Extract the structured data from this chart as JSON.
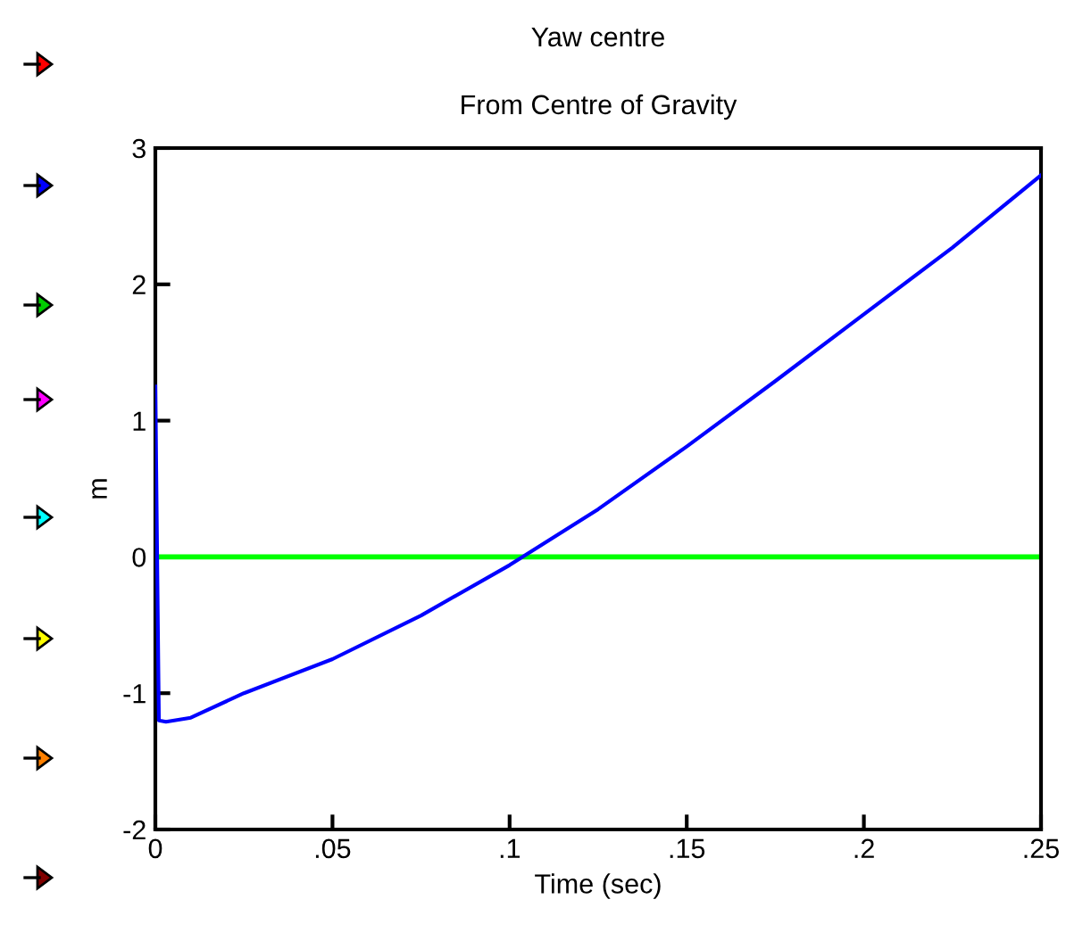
{
  "chart_data": {
    "type": "line",
    "title": "Yaw centre",
    "subtitle": "From Centre of Gravity",
    "xlabel": "Time (sec)",
    "ylabel": "m",
    "x": [
      0,
      0.001,
      0.003,
      0.01,
      0.025,
      0.05,
      0.075,
      0.1,
      0.125,
      0.15,
      0.175,
      0.2,
      0.225,
      0.25
    ],
    "series": [
      {
        "color": "#0000ff",
        "values": [
          1.25,
          -1.2,
          -1.21,
          -1.18,
          -1.0,
          -0.75,
          -0.43,
          -0.06,
          0.35,
          0.81,
          1.29,
          1.78,
          2.27,
          2.8
        ]
      }
    ],
    "ref_lines": [
      {
        "axis": "y",
        "value": 0,
        "color": "#00ff00"
      }
    ],
    "xlim": [
      0,
      0.25
    ],
    "ylim": [
      -2,
      3
    ],
    "xticks": [
      0,
      {
        "value": 0.05,
        "label": ".05"
      },
      {
        "value": 0.1,
        "label": ".1"
      },
      {
        "value": 0.15,
        "label": ".15"
      },
      {
        "value": 0.2,
        "label": ".2"
      },
      {
        "value": 0.25,
        "label": ".25"
      }
    ],
    "yticks": [
      -2,
      -1,
      0,
      1,
      2,
      3
    ],
    "grid": false,
    "legend": false
  }
}
